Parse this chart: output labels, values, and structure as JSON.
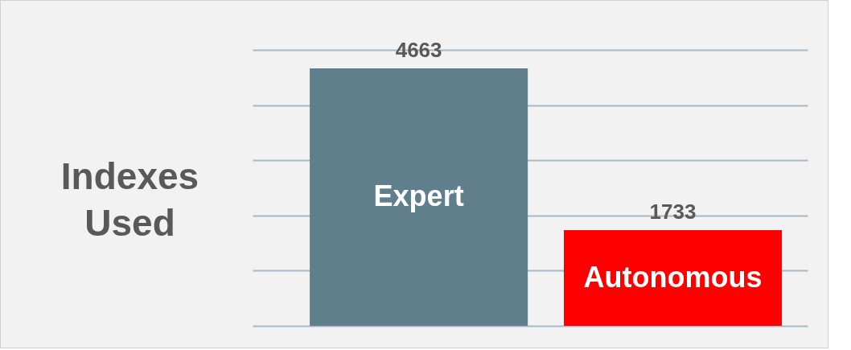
{
  "chart_data": {
    "type": "bar",
    "ylabel": "Indexes Used",
    "categories": [
      "Expert",
      "Autonomous"
    ],
    "values": [
      4663,
      1733
    ],
    "colors": [
      "#607f8c",
      "#ff0000"
    ],
    "ylim": [
      0,
      5000
    ],
    "yticks": [
      {
        "value": 0,
        "label": null
      },
      {
        "value": 1000,
        "label": null
      },
      {
        "value": 2000,
        "label": null
      },
      {
        "value": 3000,
        "label": null
      },
      {
        "value": 4000,
        "label": null
      },
      {
        "value": 5000,
        "label": null
      }
    ],
    "grid": "y",
    "data_labels": true
  }
}
